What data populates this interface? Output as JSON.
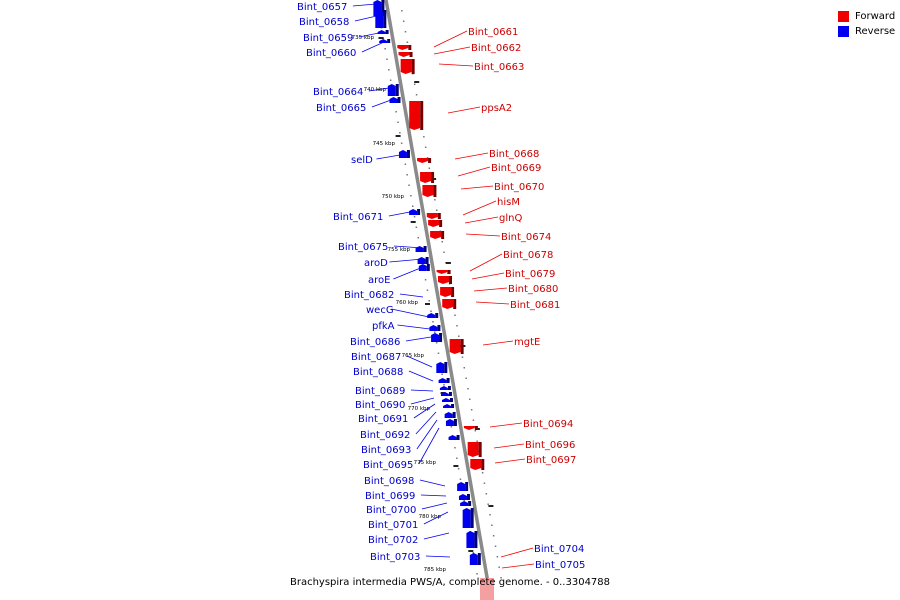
{
  "legend": {
    "items": [
      {
        "label": "Forward",
        "color": "#ee0000"
      },
      {
        "label": "Reverse",
        "color": "#0000ee"
      }
    ]
  },
  "caption": "Brachyspira intermedia PWS/A, complete genome. - 0..3304788",
  "colors": {
    "forward": "#ee0000",
    "reverse": "#0000ee",
    "backbone": "#888888",
    "label_reverse": "#0000cc",
    "label_forward": "#cc0000"
  },
  "ticks": [
    "735 kbp",
    "740 kbp",
    "745 kbp",
    "750 kbp",
    "755 kbp",
    "760 kbp",
    "765 kbp",
    "770 kbp",
    "775 kbp",
    "780 kbp",
    "785 kbp"
  ],
  "reverse_genes": [
    "Bint_0657",
    "Bint_0658",
    "Bint_0659",
    "Bint_0660",
    "Bint_0664",
    "Bint_0665",
    "selD",
    "Bint_0671",
    "Bint_0675",
    "aroD",
    "aroE",
    "Bint_0682",
    "wecG",
    "pfkA",
    "Bint_0686",
    "Bint_0687",
    "Bint_0688",
    "Bint_0689",
    "Bint_0690",
    "Bint_0691",
    "Bint_0692",
    "Bint_0693",
    "Bint_0695",
    "Bint_0698",
    "Bint_0699",
    "Bint_0700",
    "Bint_0701",
    "Bint_0702",
    "Bint_0703"
  ],
  "forward_genes": [
    "Bint_0661",
    "Bint_0662",
    "Bint_0663",
    "ppsA2",
    "Bint_0668",
    "Bint_0669",
    "Bint_0670",
    "hisM",
    "glnQ",
    "Bint_0674",
    "Bint_0678",
    "Bint_0679",
    "Bint_0680",
    "Bint_0681",
    "mgtE",
    "Bint_0694",
    "Bint_0696",
    "Bint_0697",
    "Bint_0704",
    "Bint_0705"
  ]
}
